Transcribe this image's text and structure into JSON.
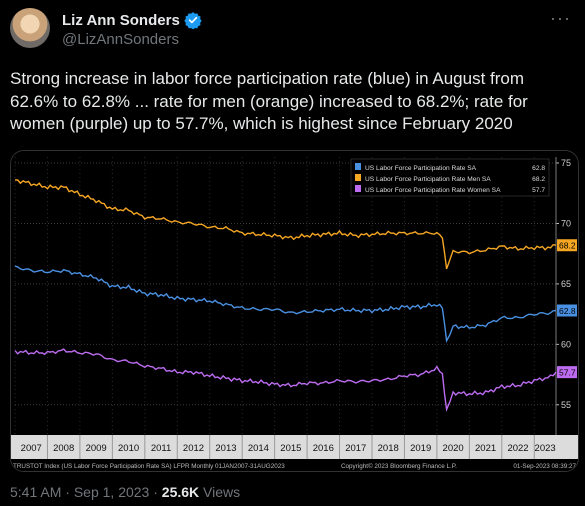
{
  "author": {
    "display_name": "Liz Ann Sonders",
    "handle": "@LizAnnSonders",
    "verified_color": "#1d9bf0"
  },
  "tweet": {
    "text": "Strong increase in labor force participation rate (blue) in August from 62.6% to 62.8% ... rate for men (orange) increased to 68.2%; rate for women (purple) up to 57.7%, which is highest since February 2020"
  },
  "meta": {
    "time": "5:41 AM",
    "separator": "·",
    "date": "Sep 1, 2023",
    "views_count": "25.6K",
    "views_label": "Views"
  },
  "chart_data": {
    "type": "line",
    "x_tick_labels": [
      "2007",
      "2008",
      "2009",
      "2010",
      "2011",
      "2012",
      "2013",
      "2014",
      "2015",
      "2016",
      "2017",
      "2018",
      "2019",
      "2020",
      "2021",
      "2022",
      "2023"
    ],
    "xlim": [
      2007.0,
      2023.67
    ],
    "y_tick_labels": [
      "55",
      "60",
      "65",
      "70",
      "75"
    ],
    "ylim": [
      52.5,
      75.5
    ],
    "grid": true,
    "legend_position": "top-right",
    "footer_left": "TRUSTOT Index (US Labor Force Participation Rate SA) LFPR  Monthly 01JAN2007-31AUG2023",
    "footer_center": "Copyright© 2023 Bloomberg Finance L.P.",
    "footer_right": "01-Sep-2023 08:39:27",
    "series": [
      {
        "name": "US Labor Force Participation Rate SA",
        "last_label": "62.8",
        "color": "#4a90e2",
        "points": [
          [
            2007.0,
            66.4
          ],
          [
            2007.5,
            66.1
          ],
          [
            2008.0,
            66.0
          ],
          [
            2008.5,
            66.1
          ],
          [
            2009.0,
            65.8
          ],
          [
            2009.5,
            65.5
          ],
          [
            2010.0,
            64.8
          ],
          [
            2010.5,
            64.7
          ],
          [
            2011.0,
            64.2
          ],
          [
            2011.5,
            64.1
          ],
          [
            2012.0,
            63.8
          ],
          [
            2012.5,
            63.7
          ],
          [
            2013.0,
            63.6
          ],
          [
            2013.5,
            63.3
          ],
          [
            2014.0,
            63.0
          ],
          [
            2014.5,
            62.9
          ],
          [
            2015.0,
            62.9
          ],
          [
            2015.5,
            62.6
          ],
          [
            2016.0,
            62.7
          ],
          [
            2016.5,
            62.8
          ],
          [
            2017.0,
            62.9
          ],
          [
            2017.5,
            62.8
          ],
          [
            2018.0,
            62.8
          ],
          [
            2018.5,
            62.9
          ],
          [
            2019.0,
            63.1
          ],
          [
            2019.5,
            63.1
          ],
          [
            2020.0,
            63.3
          ],
          [
            2020.17,
            63.0
          ],
          [
            2020.3,
            60.2
          ],
          [
            2020.5,
            61.5
          ],
          [
            2021.0,
            61.4
          ],
          [
            2021.5,
            61.6
          ],
          [
            2022.0,
            62.2
          ],
          [
            2022.5,
            62.2
          ],
          [
            2023.0,
            62.5
          ],
          [
            2023.5,
            62.6
          ],
          [
            2023.67,
            62.8
          ]
        ]
      },
      {
        "name": "US Labor Force Participation Rate Men SA",
        "last_label": "68.2",
        "color": "#f5a623",
        "points": [
          [
            2007.0,
            73.6
          ],
          [
            2007.5,
            73.3
          ],
          [
            2008.0,
            73.0
          ],
          [
            2008.5,
            73.0
          ],
          [
            2009.0,
            72.4
          ],
          [
            2009.5,
            71.9
          ],
          [
            2010.0,
            71.2
          ],
          [
            2010.5,
            71.1
          ],
          [
            2011.0,
            70.5
          ],
          [
            2011.5,
            70.4
          ],
          [
            2012.0,
            70.1
          ],
          [
            2012.5,
            70.0
          ],
          [
            2013.0,
            69.7
          ],
          [
            2013.5,
            69.6
          ],
          [
            2014.0,
            69.2
          ],
          [
            2014.5,
            69.1
          ],
          [
            2015.0,
            69.0
          ],
          [
            2015.5,
            68.8
          ],
          [
            2016.0,
            69.0
          ],
          [
            2016.5,
            69.1
          ],
          [
            2017.0,
            69.2
          ],
          [
            2017.5,
            69.0
          ],
          [
            2018.0,
            69.1
          ],
          [
            2018.5,
            69.2
          ],
          [
            2019.0,
            69.2
          ],
          [
            2019.5,
            69.2
          ],
          [
            2020.0,
            69.2
          ],
          [
            2020.17,
            68.8
          ],
          [
            2020.3,
            66.3
          ],
          [
            2020.5,
            67.7
          ],
          [
            2021.0,
            67.6
          ],
          [
            2021.5,
            67.8
          ],
          [
            2022.0,
            68.1
          ],
          [
            2022.5,
            67.9
          ],
          [
            2023.0,
            68.0
          ],
          [
            2023.5,
            68.0
          ],
          [
            2023.67,
            68.2
          ]
        ]
      },
      {
        "name": "US Labor Force Participation Rate Women SA",
        "last_label": "57.7",
        "color": "#bd6cf2",
        "points": [
          [
            2007.0,
            59.4
          ],
          [
            2007.5,
            59.3
          ],
          [
            2008.0,
            59.3
          ],
          [
            2008.5,
            59.5
          ],
          [
            2009.0,
            59.3
          ],
          [
            2009.5,
            59.2
          ],
          [
            2010.0,
            58.7
          ],
          [
            2010.5,
            58.6
          ],
          [
            2011.0,
            58.2
          ],
          [
            2011.5,
            58.0
          ],
          [
            2012.0,
            57.7
          ],
          [
            2012.5,
            57.7
          ],
          [
            2013.0,
            57.4
          ],
          [
            2013.5,
            57.2
          ],
          [
            2014.0,
            57.0
          ],
          [
            2014.5,
            56.9
          ],
          [
            2015.0,
            56.7
          ],
          [
            2015.5,
            56.6
          ],
          [
            2016.0,
            56.8
          ],
          [
            2016.5,
            56.8
          ],
          [
            2017.0,
            57.0
          ],
          [
            2017.5,
            56.9
          ],
          [
            2018.0,
            57.0
          ],
          [
            2018.5,
            57.1
          ],
          [
            2019.0,
            57.4
          ],
          [
            2019.5,
            57.5
          ],
          [
            2020.0,
            58.0
          ],
          [
            2020.17,
            57.6
          ],
          [
            2020.3,
            54.6
          ],
          [
            2020.5,
            56.0
          ],
          [
            2021.0,
            55.9
          ],
          [
            2021.5,
            56.0
          ],
          [
            2022.0,
            56.5
          ],
          [
            2022.5,
            56.6
          ],
          [
            2023.0,
            57.0
          ],
          [
            2023.5,
            57.3
          ],
          [
            2023.67,
            57.7
          ]
        ]
      }
    ]
  }
}
